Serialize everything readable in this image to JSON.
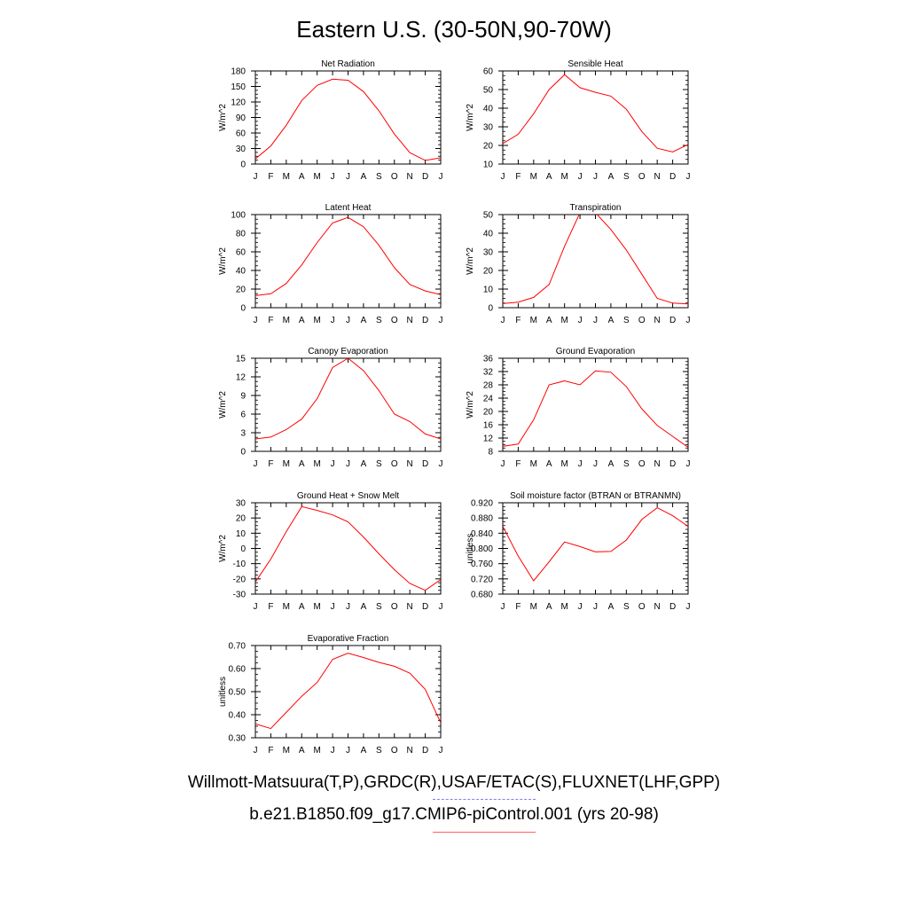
{
  "title": "Eastern U.S. (30-50N,90-70W)",
  "legend": {
    "obs_label": "Willmott-Matsuura(T,P),GRDC(R),USAF/ETAC(S),FLUXNET(LHF,GPP)",
    "model_label": "b.e21.B1850.f09_g17.CMIP6-piControl.001 (yrs 20-98)",
    "obs_color": "#7f7fff",
    "model_color": "#ff0000"
  },
  "chart_data": [
    {
      "type": "line",
      "title": "Net Radiation",
      "ylabel": "W/m^2",
      "categories": [
        "J",
        "F",
        "M",
        "A",
        "M",
        "J",
        "J",
        "A",
        "S",
        "O",
        "N",
        "D",
        "J"
      ],
      "yticks": [
        "0",
        "30",
        "60",
        "90",
        "120",
        "150",
        "180"
      ],
      "ylim": [
        0,
        180
      ],
      "series": [
        {
          "values": [
            10,
            35,
            75,
            123,
            152,
            164,
            162,
            140,
            103,
            58,
            22,
            7,
            12
          ]
        }
      ]
    },
    {
      "type": "line",
      "title": "Sensible Heat",
      "ylabel": "W/m^2",
      "categories": [
        "J",
        "F",
        "M",
        "A",
        "M",
        "J",
        "J",
        "A",
        "S",
        "O",
        "N",
        "D",
        "J"
      ],
      "yticks": [
        "10",
        "20",
        "30",
        "40",
        "50",
        "60"
      ],
      "ylim": [
        10,
        60
      ],
      "series": [
        {
          "values": [
            21,
            26,
            37,
            50,
            58,
            51,
            48.5,
            46.5,
            39.5,
            27.5,
            18.5,
            16.5,
            20.5
          ]
        }
      ]
    },
    {
      "type": "line",
      "title": "Latent Heat",
      "ylabel": "W/m^2",
      "categories": [
        "J",
        "F",
        "M",
        "A",
        "M",
        "J",
        "J",
        "A",
        "S",
        "O",
        "N",
        "D",
        "J"
      ],
      "yticks": [
        "0",
        "20",
        "40",
        "60",
        "80",
        "100"
      ],
      "ylim": [
        0,
        100
      ],
      "series": [
        {
          "values": [
            13,
            15,
            26,
            46,
            70,
            91,
            97,
            87,
            67,
            43,
            25,
            18,
            14
          ]
        }
      ]
    },
    {
      "type": "line",
      "title": "Transpiration",
      "ylabel": "W/m^2",
      "categories": [
        "J",
        "F",
        "M",
        "A",
        "M",
        "J",
        "J",
        "A",
        "S",
        "O",
        "N",
        "D",
        "J"
      ],
      "yticks": [
        "0",
        "10",
        "20",
        "30",
        "40",
        "50"
      ],
      "ylim": [
        0,
        50
      ],
      "series": [
        {
          "values": [
            2.2,
            3,
            5.5,
            12.5,
            33,
            51,
            51,
            42,
            31,
            18,
            5,
            2.5,
            2
          ]
        }
      ]
    },
    {
      "type": "line",
      "title": "Canopy Evaporation",
      "ylabel": "W/m^2",
      "categories": [
        "J",
        "F",
        "M",
        "A",
        "M",
        "J",
        "J",
        "A",
        "S",
        "O",
        "N",
        "D",
        "J"
      ],
      "yticks": [
        "0",
        "3",
        "6",
        "9",
        "12",
        "15"
      ],
      "ylim": [
        0,
        15
      ],
      "series": [
        {
          "values": [
            2,
            2.3,
            3.5,
            5.2,
            8.5,
            13.5,
            15,
            13,
            9.8,
            6,
            4.8,
            2.8,
            2
          ]
        }
      ]
    },
    {
      "type": "line",
      "title": "Ground Evaporation",
      "ylabel": "W/m^2",
      "categories": [
        "J",
        "F",
        "M",
        "A",
        "M",
        "J",
        "J",
        "A",
        "S",
        "O",
        "N",
        "D",
        "J"
      ],
      "yticks": [
        "8",
        "12",
        "16",
        "20",
        "24",
        "28",
        "32",
        "36"
      ],
      "ylim": [
        8,
        36
      ],
      "series": [
        {
          "values": [
            9.5,
            10.2,
            17.5,
            28,
            29.2,
            28,
            32.2,
            31.8,
            27.5,
            20.8,
            15.8,
            12.5,
            9.2
          ]
        }
      ]
    },
    {
      "type": "line",
      "title": "Ground Heat + Snow Melt",
      "ylabel": "W/m^2",
      "categories": [
        "J",
        "F",
        "M",
        "A",
        "M",
        "J",
        "J",
        "A",
        "S",
        "O",
        "N",
        "D",
        "J"
      ],
      "yticks": [
        "-30",
        "-20",
        "-10",
        "0",
        "10",
        "20",
        "30"
      ],
      "ylim": [
        -30,
        30
      ],
      "series": [
        {
          "values": [
            -22,
            -7,
            11,
            27.5,
            25,
            22,
            17.5,
            7.5,
            -3.5,
            -14,
            -23,
            -27.5,
            -20.5
          ]
        }
      ]
    },
    {
      "type": "line",
      "title": "Soil moisture factor (BTRAN or BTRANMN)",
      "ylabel": "unitless",
      "categories": [
        "J",
        "F",
        "M",
        "A",
        "M",
        "J",
        "J",
        "A",
        "S",
        "O",
        "N",
        "D",
        "J"
      ],
      "yticks": [
        "0.680",
        "0.720",
        "0.760",
        "0.800",
        "0.840",
        "0.880",
        "0.920"
      ],
      "ylim": [
        0.68,
        0.92
      ],
      "series": [
        {
          "values": [
            0.858,
            0.78,
            0.715,
            0.765,
            0.817,
            0.805,
            0.791,
            0.792,
            0.822,
            0.876,
            0.907,
            0.886,
            0.858
          ]
        }
      ]
    },
    {
      "type": "line",
      "title": "Evaporative Fraction",
      "ylabel": "unitless",
      "categories": [
        "J",
        "F",
        "M",
        "A",
        "M",
        "J",
        "J",
        "A",
        "S",
        "O",
        "N",
        "D",
        "J"
      ],
      "yticks": [
        "0.30",
        "0.40",
        "0.50",
        "0.60",
        "0.70"
      ],
      "ylim": [
        0.3,
        0.7
      ],
      "series": [
        {
          "values": [
            0.36,
            0.34,
            0.41,
            0.48,
            0.54,
            0.64,
            0.667,
            0.648,
            0.627,
            0.61,
            0.58,
            0.51,
            0.365
          ]
        }
      ]
    }
  ]
}
